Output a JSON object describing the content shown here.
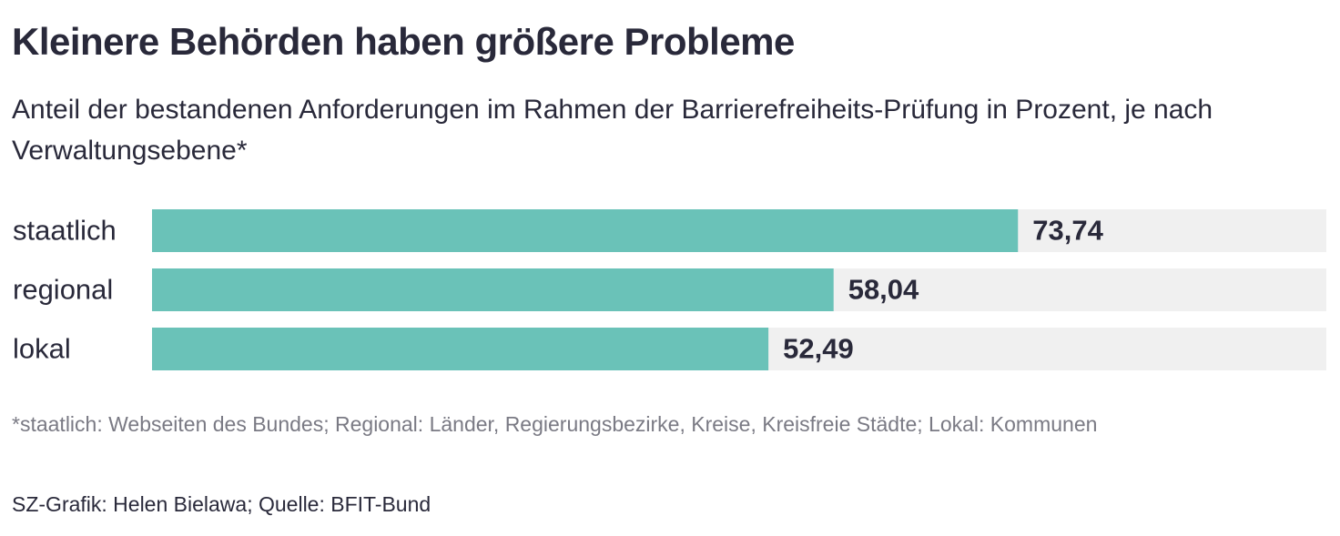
{
  "chart_data": {
    "type": "bar",
    "orientation": "horizontal",
    "title": "Kleinere Behörden haben größere Probleme",
    "subtitle": "Anteil der bestandenen Anforderungen im Rahmen der Barrierefreiheits-Prüfung in Prozent, je nach Verwaltungsebene*",
    "categories": [
      "staatlich",
      "regional",
      "lokal"
    ],
    "values": [
      73.74,
      58.04,
      52.49
    ],
    "value_labels": [
      "73,74",
      "58,04",
      "52,49"
    ],
    "color": "#6ac2b8",
    "xlim": [
      0,
      100
    ],
    "footnote": "*staatlich: Webseiten des Bundes; Regional: Länder, Regierungsbezirke, Kreise, Kreisfreie Städte; Lokal: Kommunen",
    "source": "SZ-Grafik: Helen Bielawa; Quelle: BFIT-Bund"
  }
}
